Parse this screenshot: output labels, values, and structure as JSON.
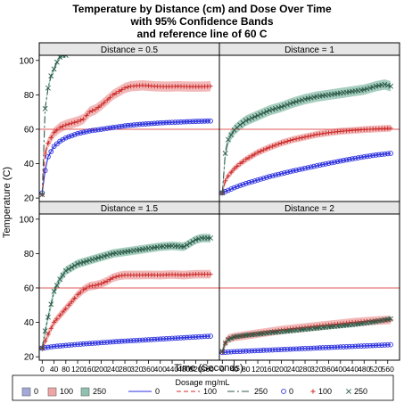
{
  "title_lines": [
    "Temperature by Distance (cm) and Dose Over Time",
    "with 95% Confidence Bands",
    "and reference line of 60 C"
  ],
  "xlabel": "Time (Seconds)",
  "ylabel": "Temperature (C)",
  "legend": {
    "title": "Dosage mg/mL",
    "entries": [
      {
        "kind": "band",
        "label": "0",
        "color": "#7b84c8"
      },
      {
        "kind": "band",
        "label": "100",
        "color": "#e87f7f"
      },
      {
        "kind": "band",
        "label": "250",
        "color": "#5fa68c"
      },
      {
        "kind": "line",
        "label": "0",
        "color": "#2a2ee0",
        "dash": ""
      },
      {
        "kind": "line",
        "label": "100",
        "color": "#cc2a2a",
        "dash": "5,3"
      },
      {
        "kind": "line",
        "label": "250",
        "color": "#2c5a48",
        "dash": "8,3,2,3"
      },
      {
        "kind": "marker",
        "label": "0",
        "color": "#2a2ee0",
        "symbol": "circle"
      },
      {
        "kind": "marker",
        "label": "100",
        "color": "#cc2a2a",
        "symbol": "plus"
      },
      {
        "kind": "marker",
        "label": "250",
        "color": "#2c5a48",
        "symbol": "x"
      }
    ]
  },
  "chart_data": {
    "type": "line",
    "xlim": [
      -10,
      600
    ],
    "ylim": [
      18,
      103
    ],
    "xticks": [
      0,
      40,
      80,
      120,
      160,
      200,
      240,
      280,
      320,
      360,
      400,
      440,
      480,
      520,
      560
    ],
    "yticks": [
      20,
      40,
      60,
      80,
      100
    ],
    "reference_line": {
      "y": 60,
      "color": "#e05a5a"
    },
    "colors": {
      "0": "#2a2ee0",
      "100": "#cc2a2a",
      "250": "#2c5a48",
      "band0": "#7b84c8",
      "band100": "#e87f7f",
      "band250": "#5fa68c"
    },
    "panels": [
      {
        "label": "Distance = 0.5",
        "series": [
          {
            "name": "0",
            "x": [
              0,
              10,
              20,
              40,
              60,
              80,
              120,
              160,
              200,
              240,
              280,
              320,
              360,
              400,
              440,
              480,
              520,
              570
            ],
            "y": [
              23,
              36,
              44,
              50,
              53,
              55,
              57.5,
              59,
              60,
              61,
              62,
              62.7,
              63.2,
              63.7,
              64,
              64.3,
              64.6,
              64.8
            ],
            "band": 0.8
          },
          {
            "name": "100",
            "x": [
              0,
              10,
              20,
              40,
              60,
              80,
              100,
              120,
              140,
              160,
              180,
              200,
              220,
              240,
              260,
              280,
              300,
              340,
              380,
              420,
              460,
              500,
              540,
              570
            ],
            "y": [
              22,
              46,
              52,
              58,
              61,
              62.5,
              63.5,
              64.5,
              66,
              70,
              71.5,
              74,
              77,
              80,
              82,
              84,
              85,
              85.5,
              85,
              84.8,
              85,
              84.8,
              84.8,
              85
            ],
            "band": 3
          },
          {
            "name": "250",
            "x": [
              0,
              10,
              20,
              30,
              40,
              50,
              60,
              70,
              80
            ],
            "y": [
              22,
              72,
              84,
              91,
              95,
              99,
              102,
              103,
              103
            ],
            "band": 1.5
          }
        ]
      },
      {
        "label": "Distance = 1",
        "series": [
          {
            "name": "0",
            "x": [
              0,
              40,
              80,
              120,
              160,
              200,
              240,
              280,
              320,
              360,
              400,
              440,
              480,
              520,
              570
            ],
            "y": [
              23,
              26,
              28.5,
              30.5,
              32.5,
              34.2,
              35.8,
              37.3,
              38.8,
              40.2,
              41.5,
              42.8,
              44,
              45,
              46
            ],
            "band": 0.6
          },
          {
            "name": "100",
            "x": [
              0,
              10,
              20,
              40,
              60,
              80,
              120,
              160,
              200,
              240,
              280,
              320,
              360,
              400,
              440,
              480,
              520,
              570
            ],
            "y": [
              23,
              30,
              33,
              37,
              40,
              42.5,
              46.5,
              49.5,
              52,
              54,
              55.5,
              57,
              58,
              58.8,
              59.3,
              59.8,
              60.2,
              60.6
            ],
            "band": 2
          },
          {
            "name": "250",
            "x": [
              0,
              10,
              20,
              40,
              60,
              80,
              100,
              120,
              160,
              200,
              240,
              280,
              320,
              360,
              400,
              440,
              480,
              520,
              550,
              570
            ],
            "y": [
              23,
              46,
              54,
              59.5,
              62.5,
              65,
              66.5,
              68,
              71,
              73,
              75.5,
              77.5,
              79,
              80,
              81,
              82,
              83,
              85,
              86,
              85
            ],
            "band": 3
          }
        ]
      },
      {
        "label": "Distance = 1.5",
        "series": [
          {
            "name": "0",
            "x": [
              0,
              40,
              80,
              120,
              160,
              200,
              240,
              280,
              320,
              360,
              400,
              440,
              480,
              520,
              570
            ],
            "y": [
              25,
              26,
              26.6,
              27.2,
              27.7,
              28.2,
              28.7,
              29.1,
              29.5,
              29.9,
              30.3,
              30.7,
              31.1,
              31.5,
              32
            ],
            "band": 0.5
          },
          {
            "name": "100",
            "x": [
              0,
              10,
              20,
              40,
              60,
              80,
              100,
              120,
              140,
              160,
              180,
              200,
              220,
              240,
              260,
              280,
              320,
              360,
              400,
              440,
              480,
              520,
              570
            ],
            "y": [
              25,
              29,
              33,
              40,
              44,
              48,
              52,
              56,
              59,
              61,
              61.5,
              62.5,
              64,
              66,
              67,
              67.5,
              67.5,
              67.6,
              67.5,
              67.8,
              67.5,
              68,
              68
            ],
            "band": 2.5
          },
          {
            "name": "250",
            "x": [
              0,
              10,
              20,
              40,
              60,
              80,
              100,
              120,
              160,
              200,
              240,
              280,
              320,
              360,
              400,
              440,
              480,
              500,
              520,
              540,
              560,
              570
            ],
            "y": [
              25,
              35,
              43,
              58,
              65,
              70,
              72,
              74,
              76,
              78,
              80,
              81,
              82,
              83,
              84,
              84.5,
              84,
              86,
              88,
              89,
              89,
              89
            ],
            "band": 2.5
          }
        ]
      },
      {
        "label": "Distance = 2",
        "series": [
          {
            "name": "0",
            "x": [
              0,
              40,
              80,
              120,
              160,
              200,
              240,
              280,
              320,
              360,
              400,
              440,
              480,
              520,
              570
            ],
            "y": [
              22.5,
              23,
              23.3,
              23.6,
              23.9,
              24.2,
              24.5,
              24.8,
              25.1,
              25.4,
              25.7,
              26,
              26.3,
              26.6,
              27
            ],
            "band": 0.4
          },
          {
            "name": "100",
            "x": [
              0,
              10,
              20,
              40,
              80,
              120,
              160,
              200,
              240,
              280,
              320,
              360,
              400,
              440,
              480,
              520,
              570
            ],
            "y": [
              23,
              28,
              30.5,
              31.5,
              32.5,
              33.5,
              34.5,
              35.5,
              36.3,
              37,
              37.8,
              38.5,
              39.2,
              40,
              40.5,
              41,
              41.5
            ],
            "band": 2.5
          },
          {
            "name": "250",
            "x": [
              0,
              10,
              20,
              40,
              80,
              120,
              160,
              200,
              240,
              280,
              320,
              360,
              400,
              440,
              480,
              520,
              570
            ],
            "y": [
              23,
              28,
              30,
              31.5,
              32.5,
              33.2,
              34,
              34.6,
              35.3,
              36,
              36.7,
              37.4,
              38,
              38.7,
              39.5,
              40.5,
              42
            ],
            "band": 1.5
          }
        ]
      }
    ]
  }
}
